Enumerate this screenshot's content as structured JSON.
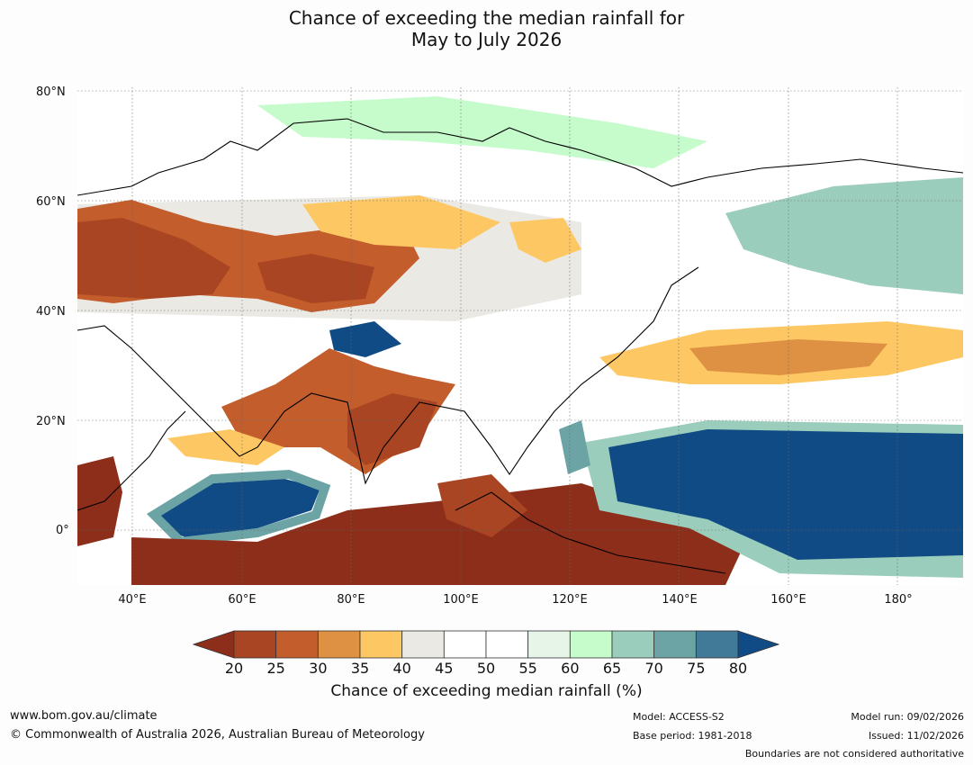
{
  "title": {
    "line1": "Chance of exceeding the median rainfall for",
    "line2": "May to July 2026"
  },
  "map": {
    "lat_labels": [
      "80°N",
      "60°N",
      "40°N",
      "20°N",
      "0°"
    ],
    "lon_labels": [
      "40°E",
      "60°E",
      "80°E",
      "100°E",
      "120°E",
      "140°E",
      "160°E",
      "180°"
    ],
    "lon_range": [
      30,
      192
    ],
    "lat_range": [
      -10,
      81
    ]
  },
  "colorbar": {
    "ticks": [
      "20",
      "25",
      "30",
      "35",
      "40",
      "45",
      "50",
      "55",
      "60",
      "65",
      "70",
      "75",
      "80"
    ],
    "colors": [
      "#8c2e1a",
      "#a94522",
      "#c35d2c",
      "#df9143",
      "#fdc863",
      "#ebe9e4",
      "#ffffff",
      "#ffffff",
      "#e7f5e8",
      "#c6fbcc",
      "#9acdbb",
      "#6ca4a6",
      "#417a98",
      "#114b85"
    ],
    "label": "Chance of exceeding median rainfall (%)"
  },
  "footer": {
    "website": "www.bom.gov.au/climate",
    "copyright": "© Commonwealth of Australia 2026, Australian Bureau of Meteorology",
    "model": "Model: ACCESS-S2",
    "base_period": "Base period: 1981-2018",
    "model_run": "Model run: 09/02/2026",
    "issued": "Issued: 11/02/2026",
    "disclaimer": "Boundaries are not considered authoritative"
  }
}
